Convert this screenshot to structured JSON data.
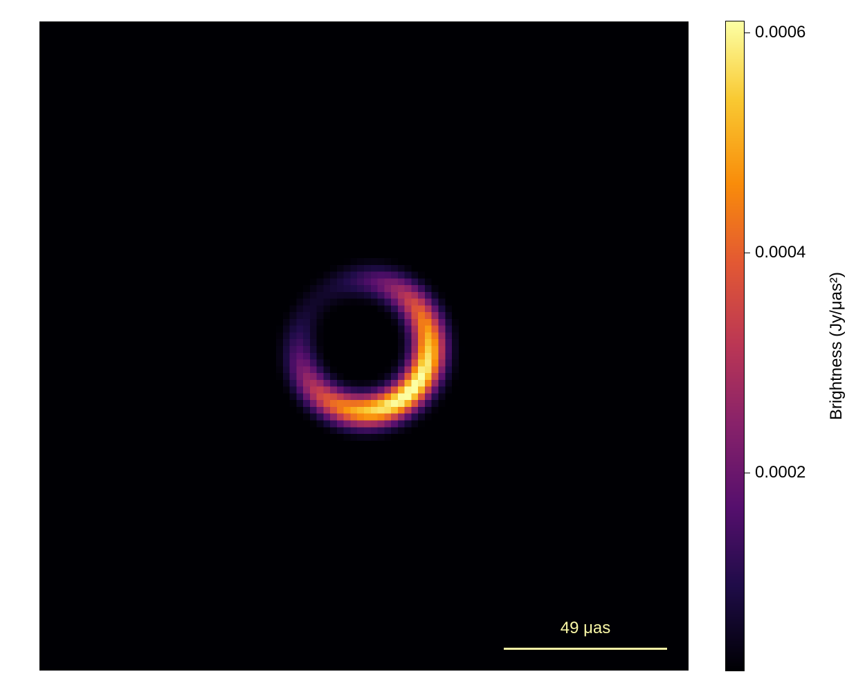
{
  "chart_data": {
    "type": "heatmap",
    "title": "",
    "xlabel": "",
    "ylabel": "",
    "colormap": "inferno",
    "grid_size": 96,
    "image": {
      "ring": {
        "center": [
          0,
          0
        ],
        "radius_uas": 20,
        "width_uas": 3.6,
        "peak_brightness": 0.00061,
        "brightest_side": "bottom-right",
        "faintest_side": "top-left"
      },
      "diffuse_blobs": [
        {
          "center_uas": [
            -46,
            -27
          ],
          "brightness": 1.4e-05
        },
        {
          "center_uas": [
            30,
            44
          ],
          "brightness": 1e-05
        },
        {
          "center_uas": [
            22,
            5
          ],
          "brightness": 1.2e-05
        }
      ],
      "background_brightness": 1.5e-06
    },
    "scale_bar": {
      "length_uas": 49,
      "label": "49 μas",
      "color": "#f9f7a6"
    },
    "colorbar": {
      "label": "Brightness (Jy/μas²)",
      "range": [
        2e-05,
        0.00061
      ],
      "ticks": [
        {
          "value": 0.0002,
          "label": "0.0002"
        },
        {
          "value": 0.0004,
          "label": "0.0004"
        },
        {
          "value": 0.0006,
          "label": "0.0006"
        }
      ]
    }
  }
}
